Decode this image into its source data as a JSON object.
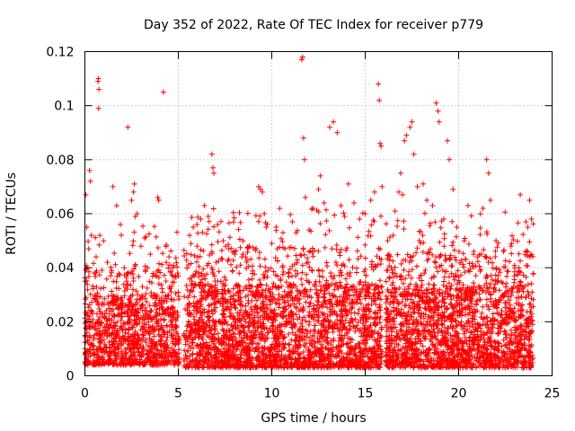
{
  "chart_data": {
    "type": "scatter",
    "title": "Day 352 of 2022, Rate Of TEC Index for receiver p779",
    "xlabel": "GPS time / hours",
    "ylabel": "ROTI / TECUs",
    "xlim": [
      0,
      25
    ],
    "ylim": [
      0,
      0.12
    ],
    "xticks": [
      0,
      5,
      10,
      15,
      20,
      25
    ],
    "xtick_labels": [
      "0",
      "5",
      "10",
      "15",
      "20",
      "25"
    ],
    "yticks": [
      0,
      0.02,
      0.04,
      0.06,
      0.08,
      0.1,
      0.12
    ],
    "ytick_labels": [
      "0",
      "0.02",
      "0.04",
      "0.06",
      "0.08",
      "0.1",
      "0.12"
    ],
    "grid": true,
    "marker": "+",
    "color": "#ff0000",
    "series": [
      {
        "name": "ROTI",
        "points": [
          [
            0.05,
            0.067
          ],
          [
            0.1,
            0.055
          ],
          [
            0.2,
            0.047
          ],
          [
            0.25,
            0.076
          ],
          [
            0.3,
            0.072
          ],
          [
            0.35,
            0.052
          ],
          [
            0.5,
            0.038
          ],
          [
            0.6,
            0.044
          ],
          [
            0.7,
            0.109
          ],
          [
            0.72,
            0.11
          ],
          [
            0.75,
            0.106
          ],
          [
            0.73,
            0.099
          ],
          [
            0.8,
            0.052
          ],
          [
            1.0,
            0.05
          ],
          [
            1.2,
            0.042
          ],
          [
            1.5,
            0.07
          ],
          [
            1.7,
            0.063
          ],
          [
            1.9,
            0.056
          ],
          [
            2.3,
            0.092
          ],
          [
            2.5,
            0.065
          ],
          [
            2.6,
            0.068
          ],
          [
            2.65,
            0.071
          ],
          [
            2.7,
            0.059
          ],
          [
            2.8,
            0.06
          ],
          [
            3.0,
            0.048
          ],
          [
            3.2,
            0.051
          ],
          [
            3.5,
            0.045
          ],
          [
            3.9,
            0.066
          ],
          [
            3.95,
            0.065
          ],
          [
            4.2,
            0.105
          ],
          [
            4.5,
            0.044
          ],
          [
            4.7,
            0.04
          ],
          [
            5.0,
            0.037
          ],
          [
            5.6,
            0.052
          ],
          [
            5.8,
            0.055
          ],
          [
            6.0,
            0.056
          ],
          [
            6.2,
            0.058
          ],
          [
            6.4,
            0.063
          ],
          [
            6.6,
            0.059
          ],
          [
            6.8,
            0.082
          ],
          [
            6.85,
            0.077
          ],
          [
            6.9,
            0.075
          ],
          [
            7.1,
            0.056
          ],
          [
            7.4,
            0.05
          ],
          [
            7.7,
            0.047
          ],
          [
            8.0,
            0.046
          ],
          [
            8.4,
            0.044
          ],
          [
            8.8,
            0.048
          ],
          [
            9.3,
            0.07
          ],
          [
            9.4,
            0.069
          ],
          [
            9.5,
            0.068
          ],
          [
            9.6,
            0.06
          ],
          [
            9.7,
            0.055
          ],
          [
            10.0,
            0.049
          ],
          [
            10.3,
            0.047
          ],
          [
            10.6,
            0.053
          ],
          [
            11.1,
            0.057
          ],
          [
            11.3,
            0.053
          ],
          [
            11.6,
            0.117
          ],
          [
            11.65,
            0.118
          ],
          [
            11.7,
            0.088
          ],
          [
            11.75,
            0.08
          ],
          [
            11.8,
            0.066
          ],
          [
            12.0,
            0.054
          ],
          [
            12.2,
            0.062
          ],
          [
            12.5,
            0.069
          ],
          [
            12.6,
            0.074
          ],
          [
            12.8,
            0.064
          ],
          [
            13.1,
            0.092
          ],
          [
            13.3,
            0.094
          ],
          [
            13.5,
            0.09
          ],
          [
            13.7,
            0.063
          ],
          [
            13.9,
            0.059
          ],
          [
            14.1,
            0.071
          ],
          [
            14.4,
            0.064
          ],
          [
            14.7,
            0.058
          ],
          [
            15.0,
            0.06
          ],
          [
            15.3,
            0.065
          ],
          [
            15.5,
            0.068
          ],
          [
            15.7,
            0.108
          ],
          [
            15.75,
            0.102
          ],
          [
            15.8,
            0.086
          ],
          [
            15.85,
            0.085
          ],
          [
            15.9,
            0.07
          ],
          [
            16.2,
            0.05
          ],
          [
            16.5,
            0.052
          ],
          [
            16.8,
            0.068
          ],
          [
            16.9,
            0.075
          ],
          [
            17.0,
            0.067
          ],
          [
            17.1,
            0.087
          ],
          [
            17.2,
            0.089
          ],
          [
            17.4,
            0.092
          ],
          [
            17.5,
            0.094
          ],
          [
            17.6,
            0.082
          ],
          [
            17.8,
            0.07
          ],
          [
            18.1,
            0.071
          ],
          [
            18.3,
            0.065
          ],
          [
            18.6,
            0.063
          ],
          [
            18.8,
            0.101
          ],
          [
            18.9,
            0.098
          ],
          [
            18.95,
            0.094
          ],
          [
            19.2,
            0.058
          ],
          [
            19.4,
            0.087
          ],
          [
            19.5,
            0.08
          ],
          [
            19.7,
            0.069
          ],
          [
            19.9,
            0.055
          ],
          [
            20.3,
            0.05
          ],
          [
            20.5,
            0.063
          ],
          [
            20.8,
            0.045
          ],
          [
            21.0,
            0.044
          ],
          [
            21.3,
            0.062
          ],
          [
            21.5,
            0.08
          ],
          [
            21.6,
            0.075
          ],
          [
            21.7,
            0.065
          ],
          [
            22.0,
            0.05
          ],
          [
            22.4,
            0.046
          ],
          [
            22.8,
            0.048
          ],
          [
            23.0,
            0.04
          ],
          [
            23.3,
            0.067
          ],
          [
            23.6,
            0.057
          ],
          [
            23.7,
            0.055
          ],
          [
            23.8,
            0.065
          ],
          [
            23.9,
            0.058
          ]
        ],
        "density_segments": [
          {
            "x_start": 0.0,
            "x_end": 5.05,
            "base": 0.004,
            "typical": 0.03,
            "count": 1100
          },
          {
            "x_start": 5.3,
            "x_end": 15.9,
            "base": 0.003,
            "typical": 0.034,
            "count": 2600
          },
          {
            "x_start": 16.1,
            "x_end": 24.0,
            "base": 0.003,
            "typical": 0.033,
            "count": 2000
          }
        ]
      }
    ]
  }
}
